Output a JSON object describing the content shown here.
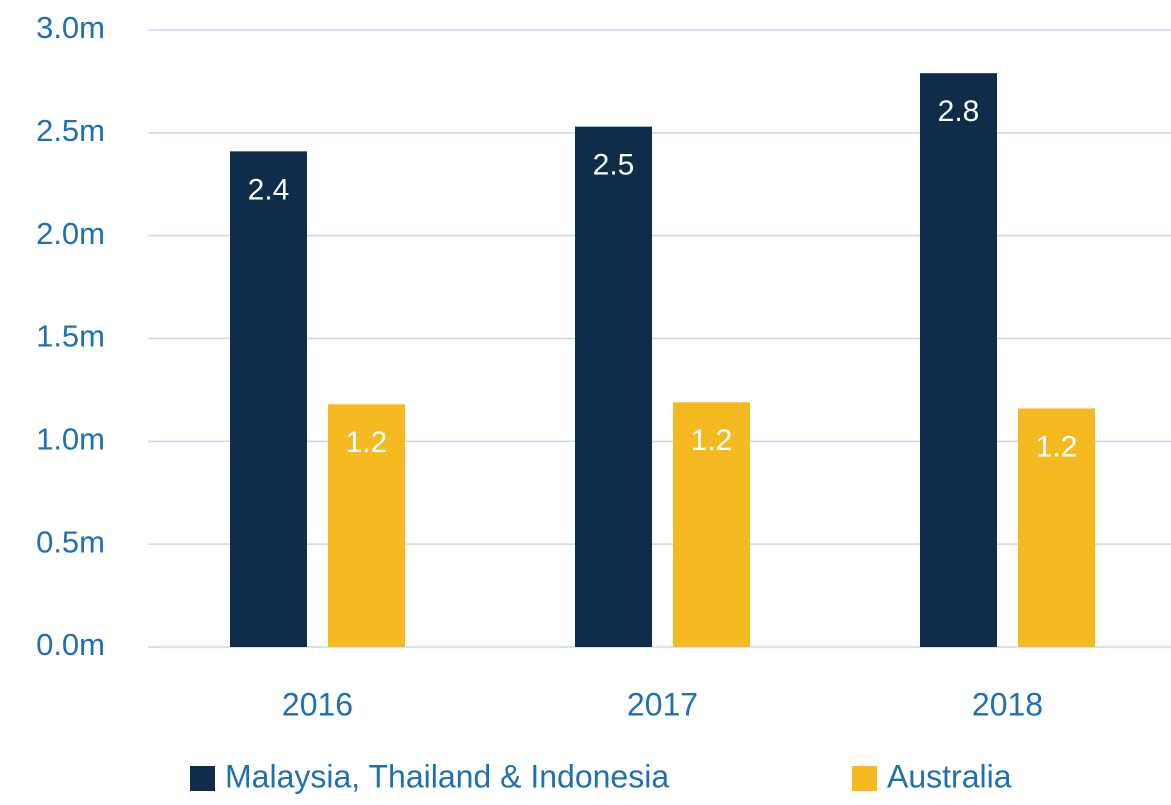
{
  "chart_data": {
    "type": "bar",
    "categories": [
      "2016",
      "2017",
      "2018"
    ],
    "series": [
      {
        "name": "Malaysia, Thailand & Indonesia",
        "color": "#0f2d4a",
        "values": [
          2.41,
          2.53,
          2.79
        ],
        "value_labels": [
          "2.4",
          "2.5",
          "2.8"
        ]
      },
      {
        "name": "Australia",
        "color": "#f5b921",
        "values": [
          1.18,
          1.19,
          1.16
        ],
        "value_labels": [
          "1.2",
          "1.2",
          "1.2"
        ]
      }
    ],
    "ylim": [
      0,
      3
    ],
    "yticks": [
      {
        "value": 0,
        "label": "0.0m"
      },
      {
        "value": 0.5,
        "label": "0.5m"
      },
      {
        "value": 1,
        "label": "1.0m"
      },
      {
        "value": 1.5,
        "label": "1.5m"
      },
      {
        "value": 2,
        "label": "2.0m"
      },
      {
        "value": 2.5,
        "label": "2.5m"
      },
      {
        "value": 3,
        "label": "3.0m"
      }
    ],
    "grid": true,
    "legend": "bottom"
  }
}
